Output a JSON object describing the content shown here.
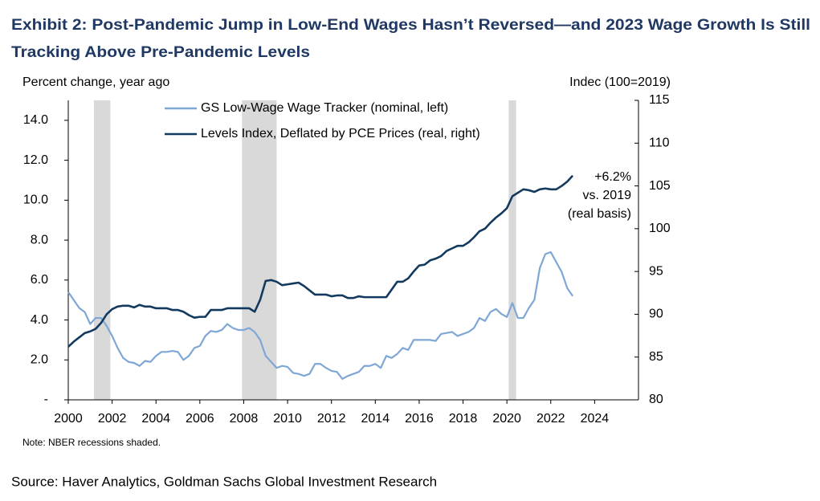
{
  "chart_data": {
    "type": "line",
    "title": [
      "Exhibit 2: Post-Pandemic Jump in Low-End Wages Hasn’t Reversed—and 2023 Wage Growth Is Still",
      "Tracking Above Pre-Pandemic Levels"
    ],
    "ylabel": "Percent change, year ago",
    "y2label": "Indec (100=2019)",
    "note": "Note: NBER  recessions shaded.",
    "source": "Source: Haver Analytics, Goldman Sachs Global Investment Research",
    "annotation": [
      "+6.2%",
      "vs. 2019",
      "(real basis)"
    ],
    "xlim": [
      2000,
      2026
    ],
    "xticks": [
      2000,
      2002,
      2004,
      2006,
      2008,
      2010,
      2012,
      2014,
      2016,
      2018,
      2020,
      2022,
      2024
    ],
    "ylim": [
      0,
      15
    ],
    "yticks": [
      {
        "value": 0,
        "label": "-"
      },
      {
        "value": 2,
        "label": "2.0"
      },
      {
        "value": 4,
        "label": "4.0"
      },
      {
        "value": 6,
        "label": "6.0"
      },
      {
        "value": 8,
        "label": "8.0"
      },
      {
        "value": 10,
        "label": "10.0"
      },
      {
        "value": 12,
        "label": "12.0"
      },
      {
        "value": 14,
        "label": "14.0"
      }
    ],
    "y2lim": [
      80,
      115
    ],
    "y2ticks": [
      80,
      85,
      90,
      95,
      100,
      105,
      110,
      115
    ],
    "recessions": [
      [
        2001.17,
        2001.92
      ],
      [
        2007.92,
        2009.5
      ],
      [
        2020.08,
        2020.42
      ]
    ],
    "recession_color": "#d9d9d9",
    "x": [
      2000,
      2000.25,
      2000.5,
      2000.75,
      2001,
      2001.25,
      2001.5,
      2001.75,
      2002,
      2002.25,
      2002.5,
      2002.75,
      2003,
      2003.25,
      2003.5,
      2003.75,
      2004,
      2004.25,
      2004.5,
      2004.75,
      2005,
      2005.25,
      2005.5,
      2005.75,
      2006,
      2006.25,
      2006.5,
      2006.75,
      2007,
      2007.25,
      2007.5,
      2007.75,
      2008,
      2008.25,
      2008.5,
      2008.75,
      2009,
      2009.25,
      2009.5,
      2009.75,
      2010,
      2010.25,
      2010.5,
      2010.75,
      2011,
      2011.25,
      2011.5,
      2011.75,
      2012,
      2012.25,
      2012.5,
      2012.75,
      2013,
      2013.25,
      2013.5,
      2013.75,
      2014,
      2014.25,
      2014.5,
      2014.75,
      2015,
      2015.25,
      2015.5,
      2015.75,
      2016,
      2016.25,
      2016.5,
      2016.75,
      2017,
      2017.25,
      2017.5,
      2017.75,
      2018,
      2018.25,
      2018.5,
      2018.75,
      2019,
      2019.25,
      2019.5,
      2019.75,
      2020,
      2020.25,
      2020.5,
      2020.75,
      2021,
      2021.25,
      2021.5,
      2021.75,
      2022,
      2022.25,
      2022.5,
      2022.75,
      2023
    ],
    "series": [
      {
        "name": "GS Low-Wage Wage Tracker (nominal, left)",
        "color": "#7fa7d5",
        "axis": "y",
        "values": [
          5.4,
          5.0,
          4.6,
          4.4,
          3.8,
          4.1,
          4.1,
          3.7,
          3.2,
          2.6,
          2.1,
          1.9,
          1.85,
          1.7,
          1.95,
          1.9,
          2.2,
          2.4,
          2.4,
          2.45,
          2.4,
          2.0,
          2.2,
          2.6,
          2.7,
          3.2,
          3.45,
          3.4,
          3.5,
          3.8,
          3.6,
          3.5,
          3.5,
          3.6,
          3.4,
          3.0,
          2.2,
          1.9,
          1.6,
          1.7,
          1.65,
          1.35,
          1.3,
          1.2,
          1.3,
          1.8,
          1.8,
          1.6,
          1.45,
          1.4,
          1.05,
          1.2,
          1.3,
          1.4,
          1.7,
          1.7,
          1.8,
          1.6,
          2.2,
          2.1,
          2.3,
          2.6,
          2.5,
          3.0,
          3.0,
          3.0,
          3.0,
          2.95,
          3.3,
          3.35,
          3.4,
          3.2,
          3.3,
          3.4,
          3.6,
          4.1,
          3.95,
          4.4,
          4.55,
          4.3,
          4.15,
          4.85,
          4.1,
          4.1,
          4.6,
          5.0,
          6.6,
          7.3,
          7.4,
          6.9,
          6.4,
          5.6,
          5.2
        ]
      },
      {
        "name": "Levels Index, Deflated by PCE Prices (real, right)",
        "color": "#133a5e",
        "axis": "y2",
        "values": [
          86.2,
          86.8,
          87.3,
          87.8,
          88.0,
          88.3,
          89.0,
          90.0,
          90.6,
          90.9,
          91.0,
          91.0,
          90.8,
          91.1,
          90.9,
          90.9,
          90.7,
          90.7,
          90.7,
          90.5,
          90.5,
          90.3,
          89.9,
          89.6,
          89.7,
          89.7,
          90.5,
          90.5,
          90.5,
          90.7,
          90.7,
          90.7,
          90.7,
          90.7,
          90.3,
          91.7,
          93.9,
          94.0,
          93.8,
          93.4,
          93.5,
          93.6,
          93.7,
          93.3,
          92.8,
          92.3,
          92.3,
          92.3,
          92.1,
          92.2,
          92.2,
          91.9,
          91.9,
          92.1,
          92.0,
          92.0,
          92.0,
          92.0,
          92.0,
          92.9,
          93.8,
          93.8,
          94.2,
          95.0,
          95.7,
          95.8,
          96.3,
          96.5,
          96.8,
          97.4,
          97.7,
          98.0,
          98.0,
          98.4,
          99.0,
          99.7,
          100.0,
          100.7,
          101.3,
          101.8,
          102.4,
          103.8,
          104.2,
          104.6,
          104.5,
          104.3,
          104.6,
          104.7,
          104.6,
          104.6,
          105.0,
          105.5,
          106.2
        ]
      }
    ]
  }
}
